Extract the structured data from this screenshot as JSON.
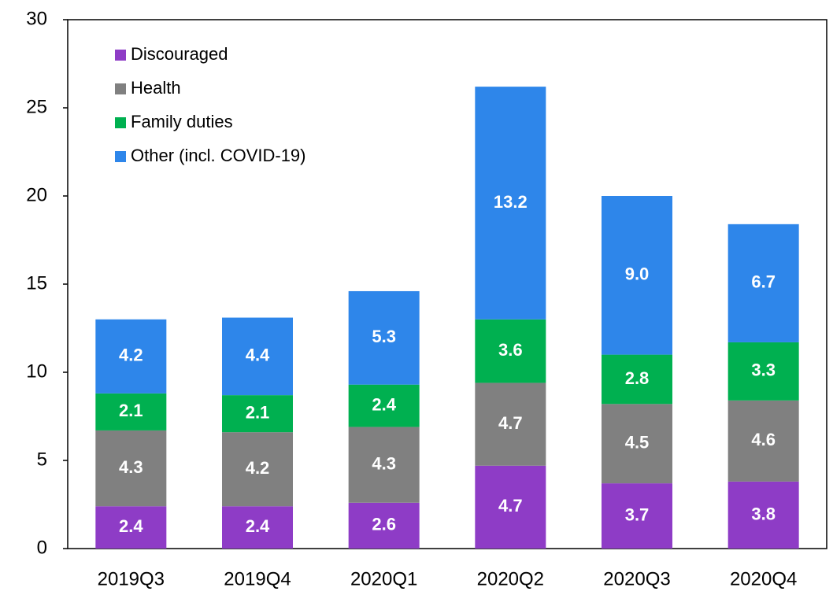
{
  "chart_data": {
    "type": "stacked_bar",
    "categories": [
      "2019Q3",
      "2019Q4",
      "2020Q1",
      "2020Q2",
      "2020Q3",
      "2020Q4"
    ],
    "series": [
      {
        "name": "Discouraged",
        "color": "#8e3cc6",
        "values": [
          2.4,
          2.4,
          2.6,
          4.7,
          3.7,
          3.8
        ],
        "value_labels": [
          "2.4",
          "2.4",
          "2.6",
          "4.7",
          "3.7",
          "3.8"
        ]
      },
      {
        "name": "Health",
        "color": "#808080",
        "values": [
          4.3,
          4.2,
          4.3,
          4.7,
          4.5,
          4.6
        ],
        "value_labels": [
          "4.3",
          "4.2",
          "4.3",
          "4.7",
          "4.5",
          "4.6"
        ]
      },
      {
        "name": "Family duties",
        "color": "#00b050",
        "values": [
          2.1,
          2.1,
          2.4,
          3.6,
          2.8,
          3.3
        ],
        "value_labels": [
          "2.1",
          "2.1",
          "2.4",
          "3.6",
          "2.8",
          "3.3"
        ]
      },
      {
        "name": "Other (incl. COVID-19)",
        "color": "#2e86ea",
        "values": [
          4.2,
          4.4,
          5.3,
          13.2,
          9.0,
          6.7
        ],
        "value_labels": [
          "4.2",
          "4.4",
          "5.3",
          "13.2",
          "9.0",
          "6.7"
        ]
      }
    ],
    "ylim": [
      0,
      30
    ],
    "yticks": [
      0,
      5,
      10,
      15,
      20,
      25,
      30
    ],
    "legend": "upper-left"
  }
}
